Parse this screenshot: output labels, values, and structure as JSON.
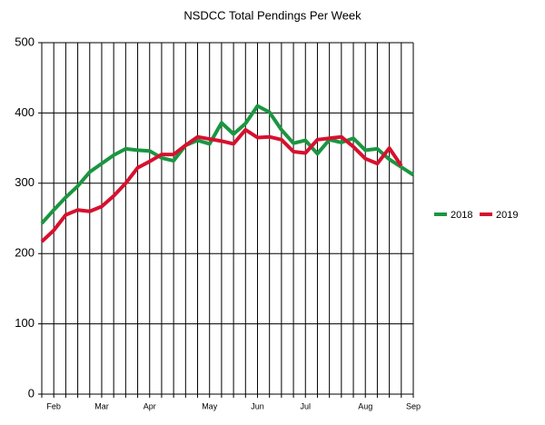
{
  "chart_data": {
    "type": "line",
    "title": "NSDCC Total Pendings Per Week",
    "categories": [
      null,
      "Feb",
      null,
      null,
      null,
      "Mar",
      null,
      null,
      null,
      "Apr",
      null,
      null,
      null,
      null,
      "May",
      null,
      null,
      null,
      "Jun",
      null,
      null,
      null,
      "Jul",
      null,
      null,
      null,
      null,
      "Aug",
      null,
      null,
      null,
      "Sep"
    ],
    "series": [
      {
        "name": "2018",
        "color": "#1a9641",
        "values": [
          243,
          262,
          280,
          296,
          316,
          328,
          340,
          349,
          347,
          346,
          336,
          332,
          354,
          361,
          356,
          386,
          370,
          385,
          410,
          401,
          376,
          357,
          361,
          342,
          362,
          358,
          364,
          347,
          349,
          334,
          323,
          312
        ]
      },
      {
        "name": "2019",
        "color": "#d7102f",
        "values": [
          217,
          233,
          255,
          262,
          260,
          267,
          282,
          300,
          322,
          331,
          341,
          341,
          354,
          366,
          363,
          360,
          356,
          376,
          365,
          366,
          362,
          345,
          343,
          362,
          364,
          366,
          352,
          335,
          328,
          350,
          325,
          null
        ]
      }
    ],
    "ylim": [
      0,
      500
    ],
    "yticks": [
      0,
      100,
      200,
      300,
      400,
      500
    ],
    "grid": true,
    "legend": "right"
  }
}
